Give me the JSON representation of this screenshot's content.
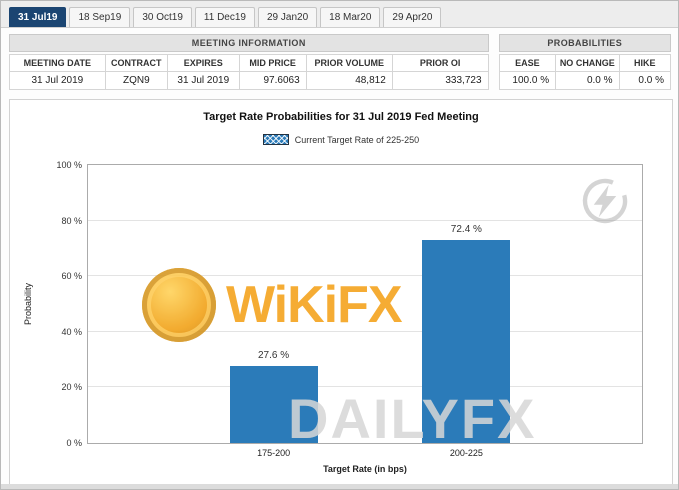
{
  "tabs": [
    {
      "label": "31 Jul19",
      "active": true
    },
    {
      "label": "18 Sep19",
      "active": false
    },
    {
      "label": "30 Oct19",
      "active": false
    },
    {
      "label": "11 Dec19",
      "active": false
    },
    {
      "label": "29 Jan20",
      "active": false
    },
    {
      "label": "18 Mar20",
      "active": false
    },
    {
      "label": "29 Apr20",
      "active": false
    }
  ],
  "meeting_info": {
    "section_title": "MEETING INFORMATION",
    "columns": [
      "MEETING DATE",
      "CONTRACT",
      "EXPIRES",
      "MID PRICE",
      "PRIOR VOLUME",
      "PRIOR OI"
    ],
    "values": [
      "31 Jul 2019",
      "ZQN9",
      "31 Jul 2019",
      "97.6063",
      "48,812",
      "333,723"
    ]
  },
  "probabilities": {
    "section_title": "PROBABILITIES",
    "columns": [
      "EASE",
      "NO CHANGE",
      "HIKE"
    ],
    "values": [
      "100.0 %",
      "0.0 %",
      "0.0 %"
    ]
  },
  "chart_data": {
    "type": "bar",
    "title": "Target Rate Probabilities for 31 Jul 2019 Fed Meeting",
    "legend": "Current Target Rate of 225-250",
    "categories": [
      "175-200",
      "200-225"
    ],
    "values": [
      27.6,
      72.4
    ],
    "value_labels": [
      "27.6 %",
      "72.4 %"
    ],
    "xlabel": "Target Rate (in bps)",
    "ylabel": "Probability",
    "ylim": [
      0,
      100
    ],
    "yticks": [
      "100 %",
      "80 %",
      "60 %",
      "40 %",
      "20 %",
      "0 %"
    ],
    "grid": true,
    "legend_position": "top",
    "bar_color": "#2b7bb9"
  },
  "watermarks": {
    "wikifx": "WiKiFX",
    "dailyfx": "DAILYFX"
  },
  "colors": {
    "active_tab": "#1b4572",
    "bar": "#2b7bb9",
    "header_bg": "#e3e3e3"
  }
}
